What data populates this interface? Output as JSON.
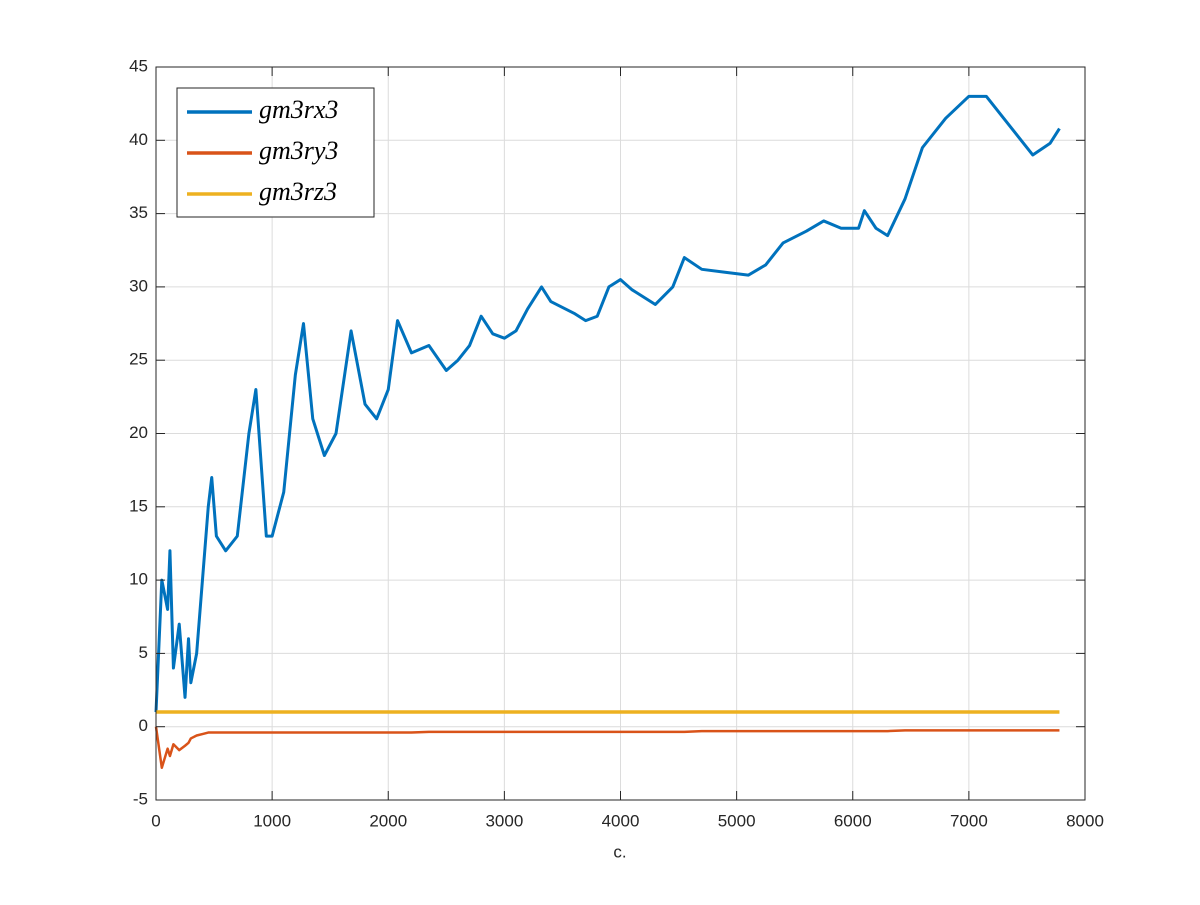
{
  "chart_data": {
    "type": "line",
    "xlabel": "c.",
    "x": [
      0,
      50,
      100,
      120,
      150,
      200,
      250,
      280,
      300,
      350,
      400,
      450,
      480,
      520,
      600,
      700,
      800,
      860,
      950,
      1000,
      1100,
      1200,
      1270,
      1350,
      1450,
      1550,
      1680,
      1800,
      1900,
      2000,
      2080,
      2200,
      2350,
      2500,
      2600,
      2700,
      2800,
      2900,
      3000,
      3100,
      3200,
      3320,
      3400,
      3600,
      3700,
      3800,
      3900,
      4000,
      4100,
      4300,
      4450,
      4550,
      4700,
      4900,
      5100,
      5250,
      5400,
      5600,
      5750,
      5900,
      6050,
      6100,
      6200,
      6300,
      6450,
      6600,
      6800,
      7000,
      7150,
      7300,
      7450,
      7550,
      7700,
      7780
    ],
    "series": [
      {
        "name": "gm3rx3",
        "color": "#0072bd",
        "values": [
          1,
          10,
          8,
          12,
          4,
          7,
          2,
          6,
          3,
          5,
          10,
          15,
          17,
          13,
          12,
          13,
          20,
          23,
          13,
          13,
          16,
          24,
          27.5,
          21,
          18.5,
          20,
          27,
          22,
          21,
          23,
          27.7,
          25.5,
          26,
          24.3,
          25,
          26,
          28,
          26.8,
          26.5,
          27,
          28.5,
          30,
          29,
          28.2,
          27.7,
          28,
          30,
          30.5,
          29.8,
          28.8,
          30,
          32,
          31.2,
          31,
          30.8,
          31.5,
          33,
          33.8,
          34.5,
          34,
          34,
          35.2,
          34,
          33.5,
          36,
          39.5,
          41.5,
          43,
          43,
          41.5,
          40,
          39,
          39.8,
          40.8
        ]
      },
      {
        "name": "gm3ry3",
        "color": "#d95319",
        "values": [
          0,
          -2.8,
          -1.5,
          -2,
          -1.2,
          -1.6,
          -1.3,
          -1.1,
          -0.8,
          -0.6,
          -0.5,
          -0.4,
          -0.4,
          -0.4,
          -0.4,
          -0.4,
          -0.4,
          -0.4,
          -0.4,
          -0.4,
          -0.4,
          -0.4,
          -0.4,
          -0.4,
          -0.4,
          -0.4,
          -0.4,
          -0.4,
          -0.4,
          -0.4,
          -0.4,
          -0.4,
          -0.35,
          -0.35,
          -0.35,
          -0.35,
          -0.35,
          -0.35,
          -0.35,
          -0.35,
          -0.35,
          -0.35,
          -0.35,
          -0.35,
          -0.35,
          -0.35,
          -0.35,
          -0.35,
          -0.35,
          -0.35,
          -0.35,
          -0.35,
          -0.3,
          -0.3,
          -0.3,
          -0.3,
          -0.3,
          -0.3,
          -0.3,
          -0.3,
          -0.3,
          -0.3,
          -0.3,
          -0.3,
          -0.25,
          -0.25,
          -0.25,
          -0.25,
          -0.25,
          -0.25,
          -0.25,
          -0.25,
          -0.25,
          -0.25
        ]
      },
      {
        "name": "gm3rz3",
        "color": "#edb120",
        "values": [
          1,
          1,
          1,
          1,
          1,
          1,
          1,
          1,
          1,
          1,
          1,
          1,
          1,
          1,
          1,
          1,
          1,
          1,
          1,
          1,
          1,
          1,
          1,
          1,
          1,
          1,
          1,
          1,
          1,
          1,
          1,
          1,
          1,
          1,
          1,
          1,
          1,
          1,
          1,
          1,
          1,
          1,
          1,
          1,
          1,
          1,
          1,
          1,
          1,
          1,
          1,
          1,
          1,
          1,
          1,
          1,
          1,
          1,
          1,
          1,
          1,
          1,
          1,
          1,
          1,
          1,
          1,
          1,
          1,
          1,
          1,
          1,
          1,
          1
        ]
      }
    ],
    "xlim": [
      0,
      8000
    ],
    "xticks": [
      0,
      1000,
      2000,
      3000,
      4000,
      5000,
      6000,
      7000,
      8000
    ],
    "ylim": [
      -5,
      45
    ],
    "yticks": [
      -5,
      0,
      5,
      10,
      15,
      20,
      25,
      30,
      35,
      40,
      45
    ],
    "grid": true,
    "legend": "top-left"
  }
}
